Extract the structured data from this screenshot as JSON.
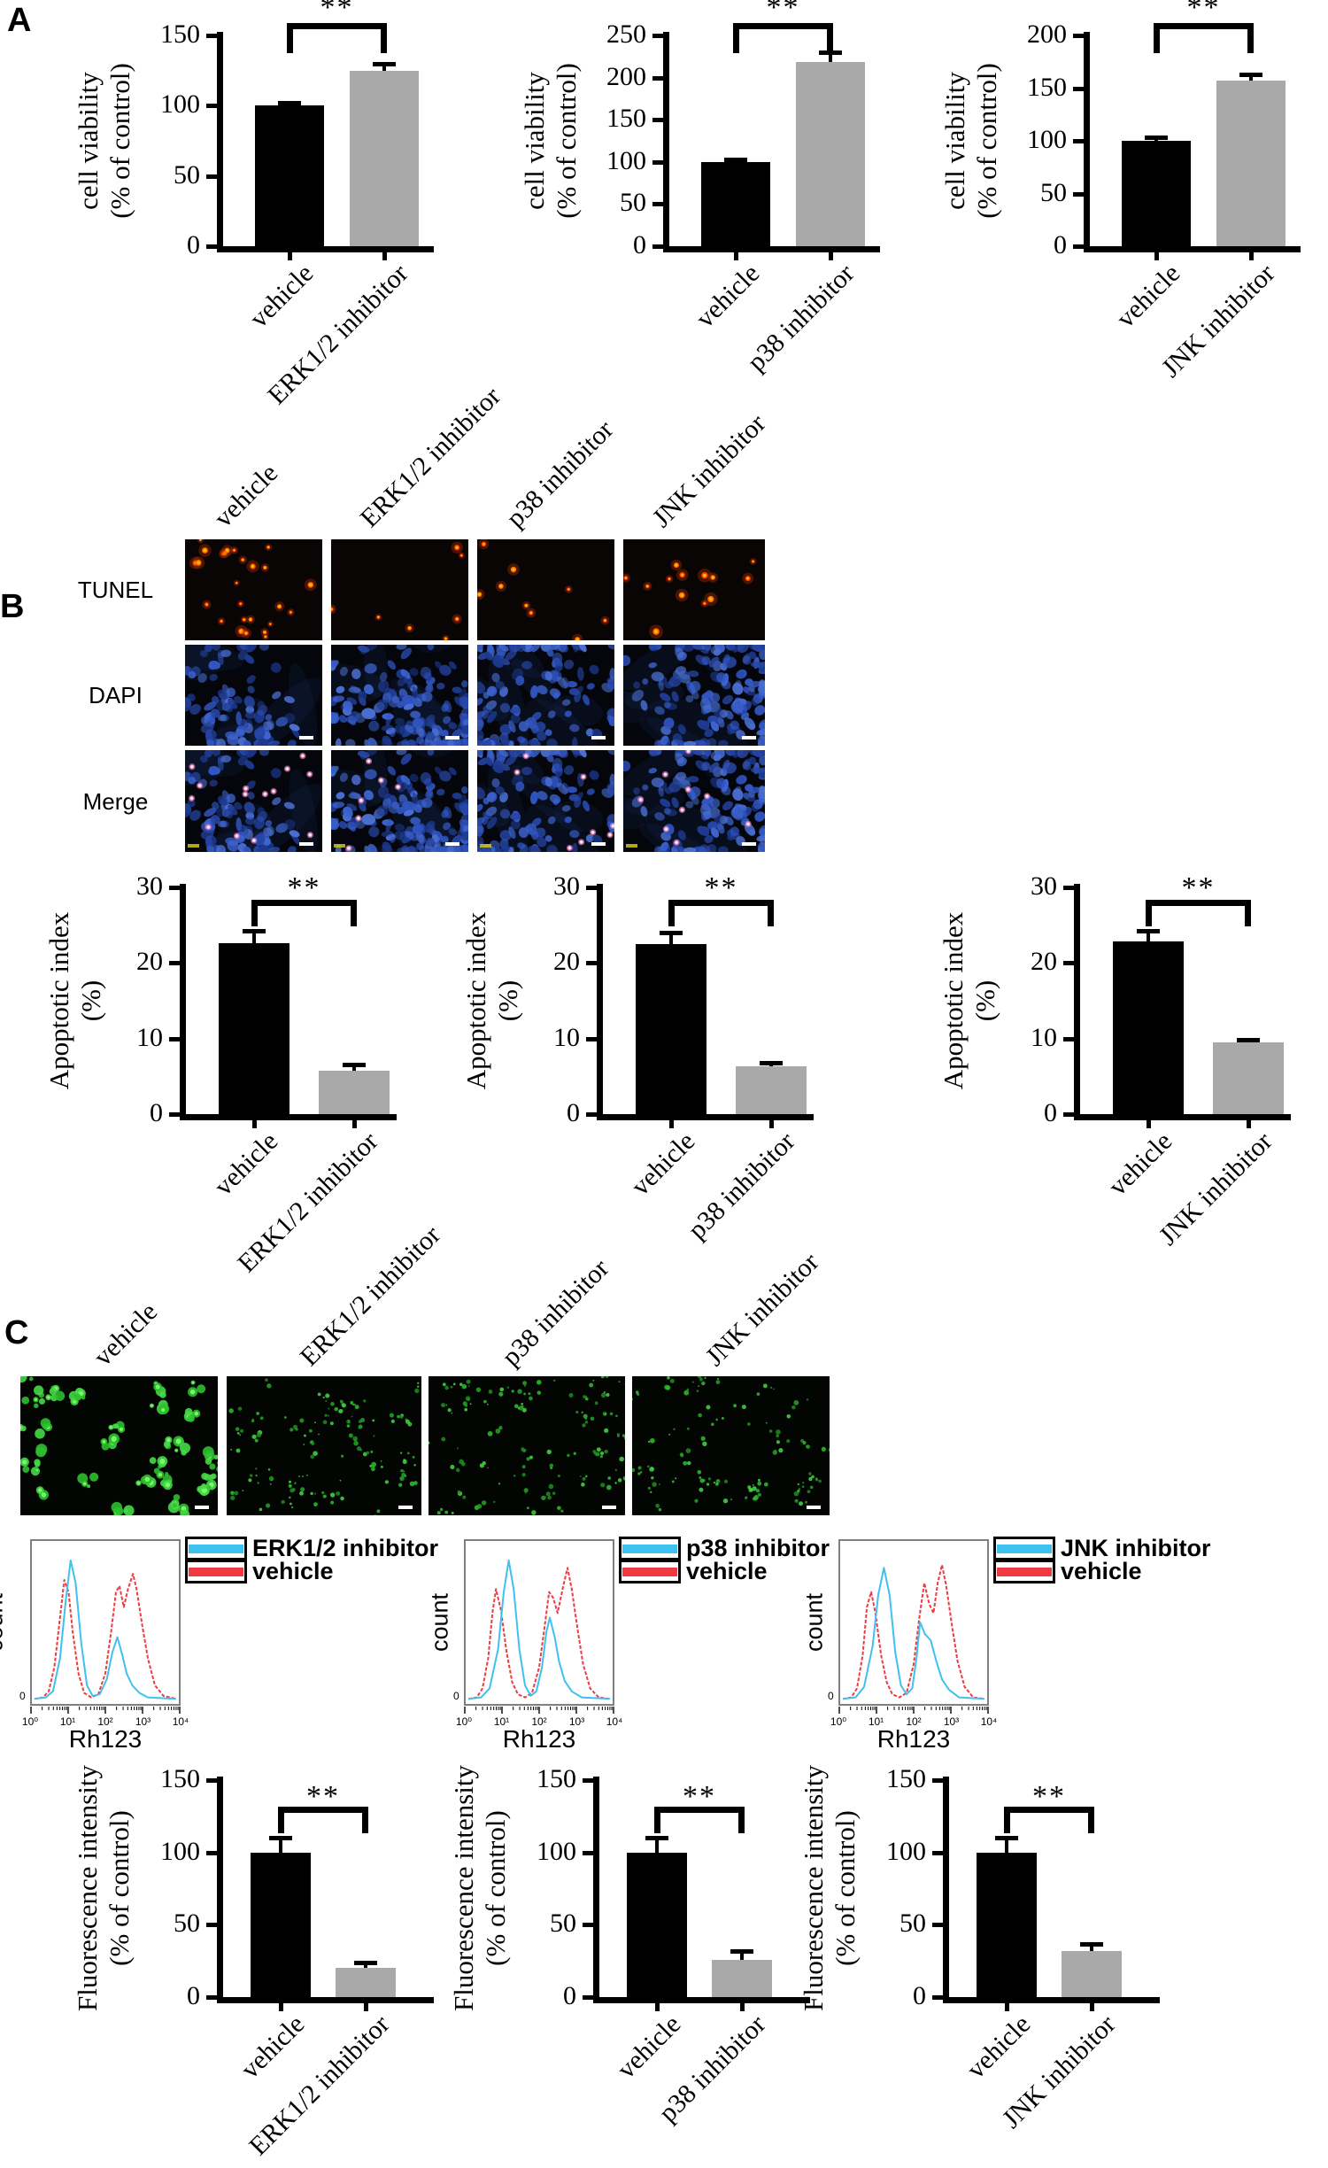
{
  "figure": {
    "panel_a_letter": "A",
    "panel_b_letter": "B",
    "panel_c_letter": "C"
  },
  "panel_b": {
    "col_labels": [
      "vehicle",
      "ERK1/2 inhibitor",
      "p38 inhibitor",
      "JNK inhibitor"
    ],
    "row_labels": [
      "TUNEL",
      "DAPI",
      "Merge"
    ],
    "tunel_dots": [
      26,
      7,
      9,
      13
    ],
    "dapi_blobs": [
      95,
      160,
      140,
      150
    ],
    "merge_pink_dots": [
      14,
      6,
      8,
      9
    ]
  },
  "panel_c": {
    "col_labels": [
      "vehicle",
      "ERK1/2 inhibitor",
      "p38 inhibitor",
      "JNK inhibitor"
    ],
    "green_blob_density": [
      30,
      55,
      60,
      50
    ]
  },
  "colors": {
    "bar_black": "#000000",
    "bar_gray": "#a9a9a9",
    "flow_cyan": "#3fc1f0",
    "flow_red": "#ee3a40"
  },
  "chart_data": {
    "bar_charts": [
      {
        "id": "a1",
        "type": "bar",
        "ylabel": "cell viability\n(% of control)",
        "categories": [
          "vehicle",
          "ERK1/2 inhibitor"
        ],
        "values": [
          100,
          125
        ],
        "errors": [
          2,
          5
        ],
        "ylim": [
          0,
          150
        ],
        "yticks": [
          0,
          50,
          100,
          150
        ],
        "significance": "**",
        "bar_colors": [
          "#000000",
          "#a9a9a9"
        ]
      },
      {
        "id": "a2",
        "type": "bar",
        "ylabel": "cell viability\n(% of control)",
        "categories": [
          "vehicle",
          "p38 inhibitor"
        ],
        "values": [
          100,
          218
        ],
        "errors": [
          3,
          12
        ],
        "ylim": [
          0,
          250
        ],
        "yticks": [
          0,
          50,
          100,
          150,
          200,
          250
        ],
        "significance": "**",
        "bar_colors": [
          "#000000",
          "#a9a9a9"
        ]
      },
      {
        "id": "a3",
        "type": "bar",
        "ylabel": "cell viability\n(% of control)",
        "categories": [
          "vehicle",
          "JNK inhibitor"
        ],
        "values": [
          100,
          157
        ],
        "errors": [
          3,
          6
        ],
        "ylim": [
          0,
          200
        ],
        "yticks": [
          0,
          50,
          100,
          150,
          200
        ],
        "significance": "**",
        "bar_colors": [
          "#000000",
          "#a9a9a9"
        ]
      },
      {
        "id": "b1",
        "type": "bar",
        "ylabel": "Apoptotic index\n(%)",
        "categories": [
          "vehicle",
          "ERK1/2 inhibitor"
        ],
        "values": [
          22.6,
          5.7
        ],
        "errors": [
          1.7,
          0.9
        ],
        "ylim": [
          0,
          30
        ],
        "yticks": [
          0,
          10,
          20,
          30
        ],
        "significance": "**",
        "bar_colors": [
          "#000000",
          "#a9a9a9"
        ]
      },
      {
        "id": "b2",
        "type": "bar",
        "ylabel": "Apoptotic index\n(%)",
        "categories": [
          "vehicle",
          "p38 inhibitor"
        ],
        "values": [
          22.5,
          6.3
        ],
        "errors": [
          1.5,
          0.5
        ],
        "ylim": [
          0,
          30
        ],
        "yticks": [
          0,
          10,
          20,
          30
        ],
        "significance": "**",
        "bar_colors": [
          "#000000",
          "#a9a9a9"
        ]
      },
      {
        "id": "b3",
        "type": "bar",
        "ylabel": "Apoptotic index\n(%)",
        "categories": [
          "vehicle",
          "JNK inhibitor"
        ],
        "values": [
          22.8,
          9.5
        ],
        "errors": [
          1.5,
          0.4
        ],
        "ylim": [
          0,
          30
        ],
        "yticks": [
          0,
          10,
          20,
          30
        ],
        "significance": "**",
        "bar_colors": [
          "#000000",
          "#a9a9a9"
        ]
      },
      {
        "id": "c1",
        "type": "bar",
        "ylabel": "Fluorescence intensity\n(% of control)",
        "categories": [
          "vehicle",
          "ERK1/2 inhibitor"
        ],
        "values": [
          100,
          20
        ],
        "errors": [
          10,
          4
        ],
        "ylim": [
          0,
          150
        ],
        "yticks": [
          0,
          50,
          100,
          150
        ],
        "significance": "**",
        "bar_colors": [
          "#000000",
          "#a9a9a9"
        ]
      },
      {
        "id": "c2",
        "type": "bar",
        "ylabel": "Fluorescence intensity\n(% of control)",
        "categories": [
          "vehicle",
          "p38 inhibitor"
        ],
        "values": [
          100,
          26
        ],
        "errors": [
          10,
          6
        ],
        "ylim": [
          0,
          150
        ],
        "yticks": [
          0,
          50,
          100,
          150
        ],
        "significance": "**",
        "bar_colors": [
          "#000000",
          "#a9a9a9"
        ]
      },
      {
        "id": "c3",
        "type": "bar",
        "ylabel": "Fluorescence intensity\n(% of control)",
        "categories": [
          "vehicle",
          "JNK inhibitor"
        ],
        "values": [
          100,
          32
        ],
        "errors": [
          10,
          5
        ],
        "ylim": [
          0,
          150
        ],
        "yticks": [
          0,
          50,
          100,
          150
        ],
        "significance": "**",
        "bar_colors": [
          "#000000",
          "#a9a9a9"
        ]
      }
    ],
    "flow_histograms": [
      {
        "id": "f1",
        "type": "line",
        "xlabel": "Rh123",
        "ylabel": "count",
        "legend": [
          "ERK1/2 inhibitor",
          "vehicle"
        ],
        "xticks": [
          "10⁰",
          "10¹",
          "10²",
          "10³",
          "10⁴"
        ],
        "origin_label": "0",
        "series": [
          {
            "name": "vehicle",
            "color": "#ee3a40",
            "dashed": true,
            "points": [
              [
                0,
                0.01
              ],
              [
                0.06,
                0.02
              ],
              [
                0.1,
                0.06
              ],
              [
                0.14,
                0.22
              ],
              [
                0.18,
                0.55
              ],
              [
                0.21,
                0.8
              ],
              [
                0.24,
                0.72
              ],
              [
                0.27,
                0.45
              ],
              [
                0.31,
                0.18
              ],
              [
                0.35,
                0.05
              ],
              [
                0.4,
                0.02
              ],
              [
                0.45,
                0.04
              ],
              [
                0.5,
                0.18
              ],
              [
                0.54,
                0.45
              ],
              [
                0.575,
                0.72
              ],
              [
                0.6,
                0.76
              ],
              [
                0.63,
                0.62
              ],
              [
                0.66,
                0.74
              ],
              [
                0.695,
                0.84
              ],
              [
                0.72,
                0.74
              ],
              [
                0.76,
                0.5
              ],
              [
                0.8,
                0.28
              ],
              [
                0.85,
                0.1
              ],
              [
                0.91,
                0.03
              ],
              [
                1,
                0.01
              ]
            ]
          },
          {
            "name": "ERK1/2 inhibitor",
            "color": "#3fc1f0",
            "dashed": false,
            "points": [
              [
                0,
                0.01
              ],
              [
                0.08,
                0.02
              ],
              [
                0.13,
                0.06
              ],
              [
                0.18,
                0.28
              ],
              [
                0.22,
                0.66
              ],
              [
                0.255,
                0.93
              ],
              [
                0.29,
                0.78
              ],
              [
                0.33,
                0.38
              ],
              [
                0.37,
                0.1
              ],
              [
                0.41,
                0.03
              ],
              [
                0.46,
                0.04
              ],
              [
                0.51,
                0.14
              ],
              [
                0.55,
                0.32
              ],
              [
                0.585,
                0.42
              ],
              [
                0.62,
                0.3
              ],
              [
                0.65,
                0.18
              ],
              [
                0.69,
                0.1
              ],
              [
                0.74,
                0.05
              ],
              [
                0.8,
                0.02
              ],
              [
                1,
                0.01
              ]
            ]
          }
        ]
      },
      {
        "id": "f2",
        "type": "line",
        "xlabel": "Rh123",
        "ylabel": "count",
        "legend": [
          "p38 inhibitor",
          "vehicle"
        ],
        "xticks": [
          "10⁰",
          "10¹",
          "10²",
          "10³",
          "10⁴"
        ],
        "origin_label": "0",
        "series": [
          {
            "name": "vehicle",
            "color": "#ee3a40",
            "dashed": true,
            "points": [
              [
                0,
                0.01
              ],
              [
                0.06,
                0.02
              ],
              [
                0.1,
                0.08
              ],
              [
                0.14,
                0.28
              ],
              [
                0.17,
                0.58
              ],
              [
                0.195,
                0.74
              ],
              [
                0.23,
                0.6
              ],
              [
                0.27,
                0.32
              ],
              [
                0.31,
                0.12
              ],
              [
                0.35,
                0.04
              ],
              [
                0.4,
                0.02
              ],
              [
                0.45,
                0.05
              ],
              [
                0.5,
                0.22
              ],
              [
                0.54,
                0.5
              ],
              [
                0.57,
                0.72
              ],
              [
                0.6,
                0.68
              ],
              [
                0.63,
                0.58
              ],
              [
                0.67,
                0.76
              ],
              [
                0.7,
                0.88
              ],
              [
                0.73,
                0.74
              ],
              [
                0.77,
                0.48
              ],
              [
                0.81,
                0.24
              ],
              [
                0.86,
                0.08
              ],
              [
                0.92,
                0.02
              ],
              [
                1,
                0.01
              ]
            ]
          },
          {
            "name": "p38 inhibitor",
            "color": "#3fc1f0",
            "dashed": false,
            "points": [
              [
                0,
                0.01
              ],
              [
                0.09,
                0.02
              ],
              [
                0.15,
                0.08
              ],
              [
                0.21,
                0.34
              ],
              [
                0.25,
                0.72
              ],
              [
                0.285,
                0.93
              ],
              [
                0.32,
                0.74
              ],
              [
                0.36,
                0.34
              ],
              [
                0.4,
                0.1
              ],
              [
                0.44,
                0.03
              ],
              [
                0.48,
                0.06
              ],
              [
                0.52,
                0.22
              ],
              [
                0.55,
                0.45
              ],
              [
                0.575,
                0.55
              ],
              [
                0.61,
                0.42
              ],
              [
                0.64,
                0.26
              ],
              [
                0.68,
                0.13
              ],
              [
                0.73,
                0.06
              ],
              [
                0.8,
                0.02
              ],
              [
                1,
                0.01
              ]
            ]
          }
        ]
      },
      {
        "id": "f3",
        "type": "line",
        "xlabel": "Rh123",
        "ylabel": "count",
        "legend": [
          "JNK inhibitor",
          "vehicle"
        ],
        "xticks": [
          "10⁰",
          "10¹",
          "10²",
          "10³",
          "10⁴"
        ],
        "origin_label": "0",
        "series": [
          {
            "name": "vehicle",
            "color": "#ee3a40",
            "dashed": true,
            "points": [
              [
                0,
                0.01
              ],
              [
                0.06,
                0.02
              ],
              [
                0.1,
                0.08
              ],
              [
                0.14,
                0.3
              ],
              [
                0.17,
                0.62
              ],
              [
                0.2,
                0.72
              ],
              [
                0.23,
                0.58
              ],
              [
                0.27,
                0.3
              ],
              [
                0.31,
                0.12
              ],
              [
                0.35,
                0.04
              ],
              [
                0.4,
                0.02
              ],
              [
                0.45,
                0.05
              ],
              [
                0.5,
                0.24
              ],
              [
                0.54,
                0.55
              ],
              [
                0.575,
                0.78
              ],
              [
                0.61,
                0.64
              ],
              [
                0.64,
                0.58
              ],
              [
                0.67,
                0.78
              ],
              [
                0.7,
                0.9
              ],
              [
                0.73,
                0.76
              ],
              [
                0.77,
                0.5
              ],
              [
                0.81,
                0.26
              ],
              [
                0.86,
                0.09
              ],
              [
                0.92,
                0.02
              ],
              [
                1,
                0.01
              ]
            ]
          },
          {
            "name": "JNK inhibitor",
            "color": "#3fc1f0",
            "dashed": false,
            "points": [
              [
                0,
                0.01
              ],
              [
                0.09,
                0.02
              ],
              [
                0.15,
                0.09
              ],
              [
                0.21,
                0.36
              ],
              [
                0.25,
                0.7
              ],
              [
                0.29,
                0.88
              ],
              [
                0.33,
                0.7
              ],
              [
                0.37,
                0.32
              ],
              [
                0.41,
                0.1
              ],
              [
                0.45,
                0.04
              ],
              [
                0.49,
                0.08
              ],
              [
                0.52,
                0.28
              ],
              [
                0.545,
                0.52
              ],
              [
                0.58,
                0.44
              ],
              [
                0.62,
                0.4
              ],
              [
                0.66,
                0.26
              ],
              [
                0.7,
                0.14
              ],
              [
                0.75,
                0.07
              ],
              [
                0.82,
                0.02
              ],
              [
                1,
                0.01
              ]
            ]
          }
        ]
      }
    ]
  }
}
